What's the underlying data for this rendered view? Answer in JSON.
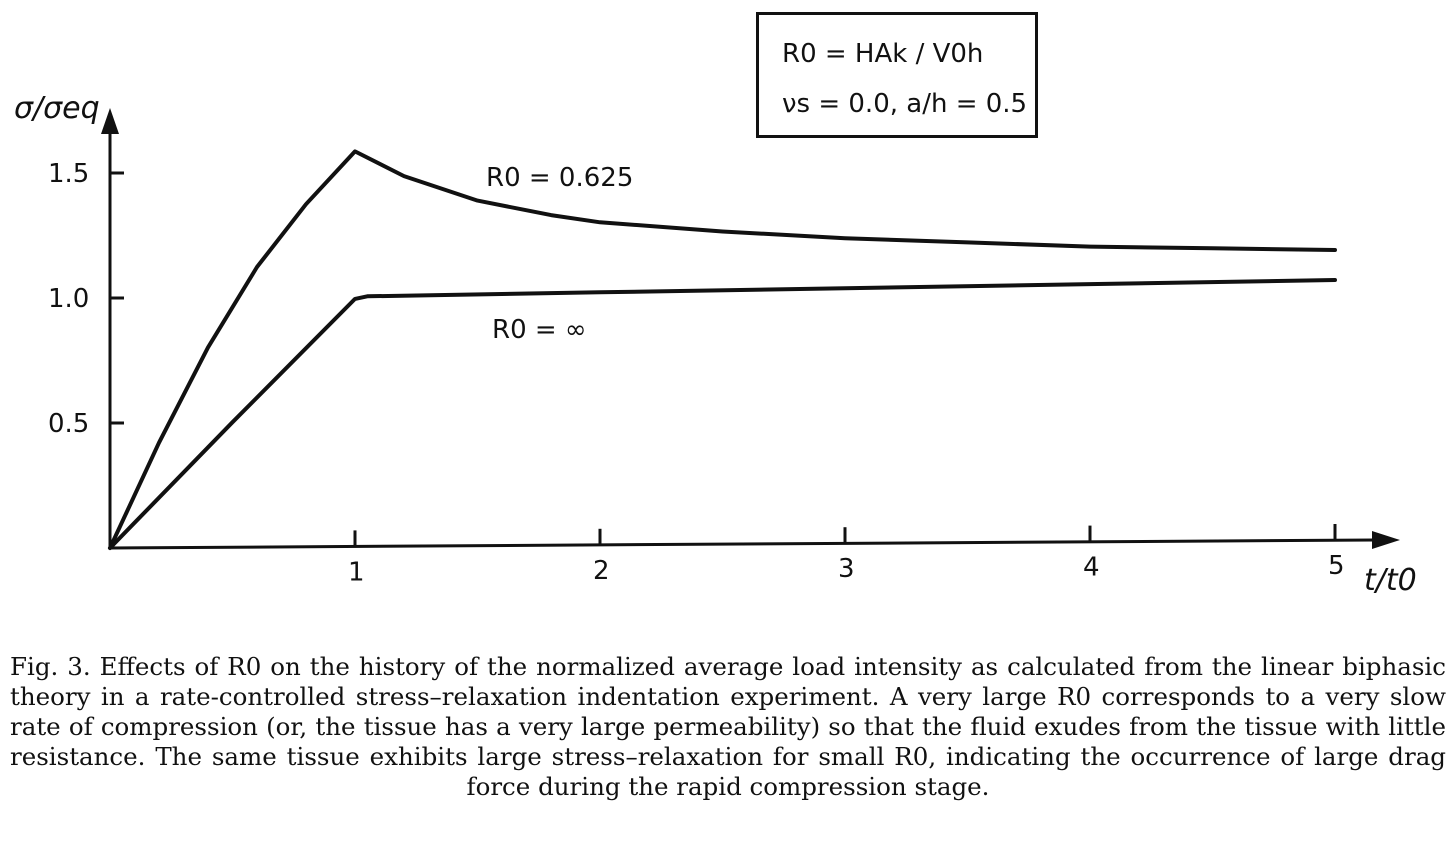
{
  "chart_data": {
    "type": "line",
    "ylabel": "σ/σeq",
    "xlabel": "t/t0",
    "xlim": [
      0,
      5.2
    ],
    "ylim": [
      0,
      1.75
    ],
    "xticks": [
      "1",
      "2",
      "3",
      "4",
      "5"
    ],
    "yticks": [
      "0.5",
      "1.0",
      "1.5"
    ],
    "series": [
      {
        "name": "R0 = 0.625",
        "x": [
          0,
          0.2,
          0.4,
          0.6,
          0.8,
          1.0,
          1.2,
          1.5,
          1.8,
          2.0,
          2.5,
          3.0,
          3.5,
          4.0,
          4.5,
          5.0
        ],
        "y": [
          0,
          0.42,
          0.8,
          1.12,
          1.37,
          1.58,
          1.48,
          1.38,
          1.32,
          1.29,
          1.25,
          1.22,
          1.2,
          1.18,
          1.17,
          1.16
        ]
      },
      {
        "name": "R0 = ∞",
        "x": [
          0,
          0.5,
          1.0,
          1.05,
          2.0,
          3.0,
          4.0,
          5.0
        ],
        "y": [
          0,
          0.5,
          0.99,
          1.0,
          1.01,
          1.02,
          1.03,
          1.04
        ]
      }
    ]
  },
  "legend": {
    "line1": "R0 = HAk / V0h",
    "line2": "νs = 0.0, a/h = 0.5"
  },
  "labels": {
    "curve_top": "R0 = 0.625",
    "curve_bottom": "R0 = ∞"
  },
  "caption": "Fig. 3. Effects of R0 on the history of the normalized average load intensity as calculated from the linear biphasic theory in a rate-controlled stress–relaxation indentation experiment. A very large R0 corresponds to a very slow rate of compression (or, the tissue has a very large permeability) so that the fluid exudes from the tissue with little resistance. The same tissue exhibits large stress–relaxation for small R0, indicating the occurrence of large drag force during the rapid compression stage."
}
